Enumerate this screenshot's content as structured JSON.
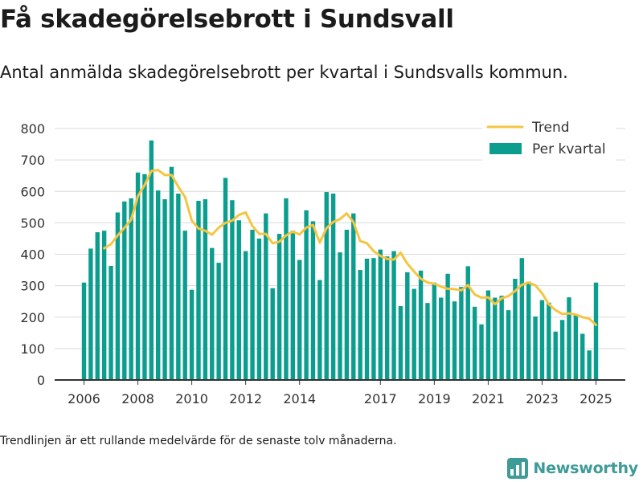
{
  "header": {
    "title": "Få skadegörelsebrott i Sundsvall",
    "subtitle": "Antal anmälda skadegörelsebrott per kvartal i Sundsvalls kommun."
  },
  "footer": {
    "note": "Trendlinjen är ett rullande medelvärde för de senaste tolv månaderna.",
    "brand": "Newsworthy"
  },
  "colors": {
    "bar": "#0b9e8f",
    "trend": "#f5c542",
    "grid": "#d9d9d9",
    "axis": "#333333",
    "brand": "#3d9b98"
  },
  "chart_data": {
    "type": "bar",
    "title": "",
    "xlabel": "",
    "ylabel": "",
    "ylim": [
      0,
      800
    ],
    "yticks": [
      0,
      100,
      200,
      300,
      400,
      500,
      600,
      700,
      800
    ],
    "xticks": [
      {
        "label": "2006",
        "at": "2006 Q1"
      },
      {
        "label": "2008",
        "at": "2008 Q1"
      },
      {
        "label": "2010",
        "at": "2010 Q1"
      },
      {
        "label": "2012",
        "at": "2012 Q1"
      },
      {
        "label": "2014",
        "at": "2014 Q1"
      },
      {
        "label": "2017",
        "at": "2017 Q1"
      },
      {
        "label": "2019",
        "at": "2019 Q1"
      },
      {
        "label": "2021",
        "at": "2021 Q1"
      },
      {
        "label": "2023",
        "at": "2023 Q1"
      },
      {
        "label": "2025",
        "at": "2025 Q1"
      }
    ],
    "grid": true,
    "legend": {
      "placement": "top-right",
      "entries": [
        "Trend",
        "Per kvartal"
      ]
    },
    "categories": [
      "2006 Q1",
      "2006 Q2",
      "2006 Q3",
      "2006 Q4",
      "2007 Q1",
      "2007 Q2",
      "2007 Q3",
      "2007 Q4",
      "2008 Q1",
      "2008 Q2",
      "2008 Q3",
      "2008 Q4",
      "2009 Q1",
      "2009 Q2",
      "2009 Q3",
      "2009 Q4",
      "2010 Q1",
      "2010 Q2",
      "2010 Q3",
      "2010 Q4",
      "2011 Q1",
      "2011 Q2",
      "2011 Q3",
      "2011 Q4",
      "2012 Q1",
      "2012 Q2",
      "2012 Q3",
      "2012 Q4",
      "2013 Q1",
      "2013 Q2",
      "2013 Q3",
      "2013 Q4",
      "2014 Q1",
      "2014 Q2",
      "2014 Q3",
      "2014 Q4",
      "2015 Q1",
      "2015 Q2",
      "2015 Q3",
      "2015 Q4",
      "2016 Q1",
      "2016 Q2",
      "2016 Q3",
      "2016 Q4",
      "2017 Q1",
      "2017 Q2",
      "2017 Q3",
      "2017 Q4",
      "2018 Q1",
      "2018 Q2",
      "2018 Q3",
      "2018 Q4",
      "2019 Q1",
      "2019 Q2",
      "2019 Q3",
      "2019 Q4",
      "2020 Q1",
      "2020 Q2",
      "2020 Q3",
      "2020 Q4",
      "2021 Q1",
      "2021 Q2",
      "2021 Q3",
      "2021 Q4",
      "2022 Q1",
      "2022 Q2",
      "2022 Q3",
      "2022 Q4",
      "2023 Q1",
      "2023 Q2",
      "2023 Q3",
      "2023 Q4",
      "2024 Q1",
      "2024 Q2",
      "2024 Q3",
      "2024 Q4",
      "2025 Q1"
    ],
    "series": [
      {
        "name": "Per kvartal",
        "type": "bar",
        "values": [
          310,
          418,
          470,
          475,
          363,
          533,
          568,
          578,
          660,
          655,
          762,
          603,
          575,
          678,
          593,
          475,
          287,
          570,
          575,
          420,
          373,
          643,
          572,
          508,
          410,
          478,
          450,
          530,
          292,
          465,
          578,
          475,
          382,
          540,
          505,
          318,
          598,
          593,
          406,
          478,
          530,
          350,
          386,
          388,
          415,
          393,
          410,
          235,
          343,
          290,
          348,
          245,
          310,
          262,
          338,
          250,
          296,
          362,
          233,
          177,
          285,
          262,
          268,
          222,
          322,
          388,
          313,
          202,
          254,
          246,
          154,
          191,
          263,
          210,
          147,
          94,
          310
        ],
        "values_note": "placeholder removed"
      },
      {
        "name": "Trend",
        "type": "line",
        "values": [
          null,
          null,
          null,
          419,
          432,
          460,
          484,
          510,
          585,
          620,
          665,
          668,
          652,
          652,
          615,
          582,
          507,
          482,
          475,
          462,
          485,
          500,
          507,
          525,
          533,
          490,
          465,
          465,
          435,
          440,
          460,
          472,
          463,
          485,
          493,
          437,
          483,
          503,
          512,
          530,
          502,
          442,
          435,
          410,
          395,
          385,
          383,
          405,
          370,
          345,
          322,
          310,
          306,
          297,
          290,
          289,
          285,
          302,
          272,
          262,
          263,
          241,
          260,
          267,
          283,
          303,
          310,
          301,
          276,
          241,
          222,
          210,
          212,
          208,
          200,
          195,
          175
        ]
      }
    ]
  }
}
